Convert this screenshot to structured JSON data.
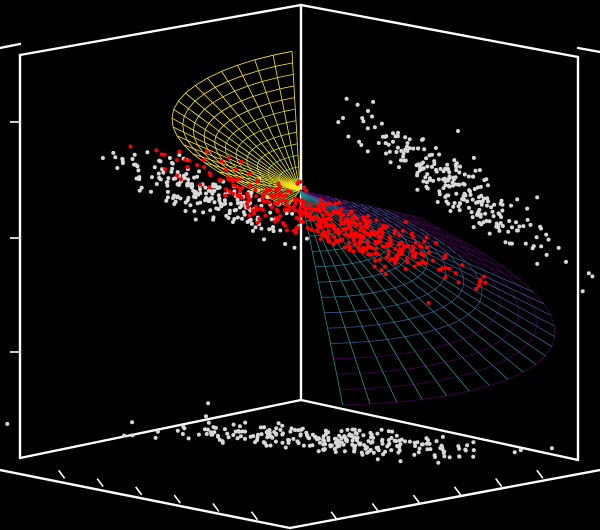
{
  "chart_data": {
    "type": "scatter",
    "projection": "3d",
    "title": "",
    "xlabel": "",
    "ylabel": "",
    "zlabel": "",
    "tick_labels_visible": false,
    "background": "#000000",
    "axis_color": "#ffffff",
    "grid": false,
    "series": [
      {
        "kind": "scatter",
        "role": "main",
        "color": "#ff0000",
        "count": 450,
        "description_of_shape": "elongated diagonal cloud through the center of the cube"
      },
      {
        "kind": "scatter",
        "role": "projection-shadows",
        "color": "#d8d8d8",
        "planes": [
          "left-wall",
          "right-wall",
          "floor"
        ]
      },
      {
        "kind": "wireframe-surface",
        "role": "fitted-cone",
        "colormap": [
          "#440154",
          "#3b528b",
          "#21918c",
          "#5ec962",
          "#fde725"
        ]
      }
    ]
  }
}
